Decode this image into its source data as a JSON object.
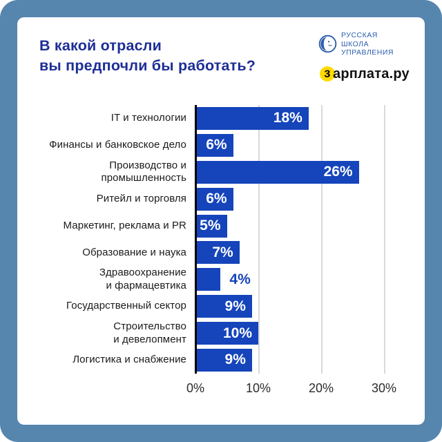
{
  "page": {
    "title_line1": "В какой отрасли",
    "title_line2": "вы предпочли бы работать?"
  },
  "logos": {
    "rshu": {
      "text": "РУССКАЯ\nШКОЛА\nУПРАВЛЕНИЯ"
    },
    "zarplata": {
      "first_letter": "з",
      "rest": "арплата.ру"
    }
  },
  "chart_data": {
    "type": "bar",
    "orientation": "horizontal",
    "title": "В какой отрасли вы предпочли бы работать?",
    "categories": [
      "IT и технологии",
      "Финансы и банковское дело",
      "Производство и\nпромышленность",
      "Ритейл и торговля",
      "Маркетинг, реклама и PR",
      "Образование и наука",
      "Здравоохранение\nи фармацевтика",
      "Государственный сектор",
      "Строительство\nи девелопмент",
      "Логистика и снабжение"
    ],
    "values": [
      18,
      6,
      26,
      6,
      5,
      7,
      4,
      9,
      10,
      9
    ],
    "value_labels": [
      "18%",
      "6%",
      "26%",
      "6%",
      "5%",
      "7%",
      "4%",
      "9%",
      "10%",
      "9%"
    ],
    "x_ticks": [
      "0%",
      "10%",
      "20%",
      "30%"
    ],
    "x_tick_values": [
      0,
      10,
      20,
      30
    ],
    "xlim": [
      0,
      30
    ],
    "grid": true,
    "legend": "none",
    "inside_label_min_value": 5,
    "bar_color": "#1544bb"
  },
  "colors": {
    "frame": "#5685ae",
    "card": "#ffffff",
    "bar": "#1544bb",
    "title": "#1d2e96",
    "rshu_blue": "#2a5dae",
    "zarplata_yellow": "#ffdb00",
    "category_label": "#1a1a1a",
    "tick_label": "#2b2b2b",
    "gridline": "#d9d9d9",
    "axis": "#000000"
  }
}
